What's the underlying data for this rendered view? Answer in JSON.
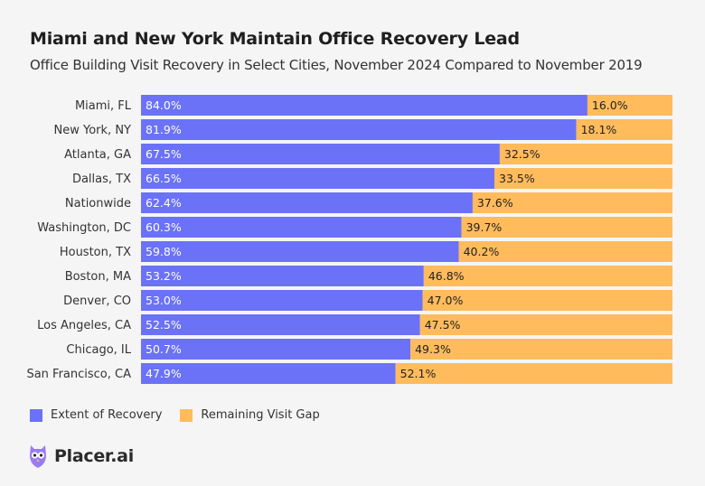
{
  "colors": {
    "recovery": "#6b72f7",
    "gap": "#ffbb5c",
    "background": "#f5f5f5"
  },
  "brand": {
    "name": "Placer.ai",
    "icon": "placer-owl-icon"
  },
  "chart_data": {
    "type": "bar",
    "orientation": "horizontal",
    "stacked": true,
    "title": "Miami and New York Maintain Office Recovery Lead",
    "subtitle": "Office Building Visit Recovery in Select Cities, November 2024 Compared to November 2019",
    "xlim": [
      0,
      100
    ],
    "categories": [
      "Miami, FL",
      "New York, NY",
      "Atlanta, GA",
      "Dallas, TX",
      "Nationwide",
      "Washington, DC",
      "Houston, TX",
      "Boston, MA",
      "Denver, CO",
      "Los Angeles, CA",
      "Chicago, IL",
      "San Francisco, CA"
    ],
    "series": [
      {
        "name": "Extent of Recovery",
        "values": [
          84.0,
          81.9,
          67.5,
          66.5,
          62.4,
          60.3,
          59.8,
          53.2,
          53.0,
          52.5,
          50.7,
          47.9
        ],
        "labels": [
          "84.0%",
          "81.9%",
          "67.5%",
          "66.5%",
          "62.4%",
          "60.3%",
          "59.8%",
          "53.2%",
          "53.0%",
          "52.5%",
          "50.7%",
          "47.9%"
        ]
      },
      {
        "name": "Remaining Visit Gap",
        "values": [
          16.0,
          18.1,
          32.5,
          33.5,
          37.6,
          39.7,
          40.2,
          46.8,
          47.0,
          47.5,
          49.3,
          52.1
        ],
        "labels": [
          "16.0%",
          "18.1%",
          "32.5%",
          "33.5%",
          "37.6%",
          "39.7%",
          "40.2%",
          "46.8%",
          "47.0%",
          "47.5%",
          "49.3%",
          "52.1%"
        ]
      }
    ],
    "legend": [
      "Extent of Recovery",
      "Remaining Visit Gap"
    ]
  }
}
